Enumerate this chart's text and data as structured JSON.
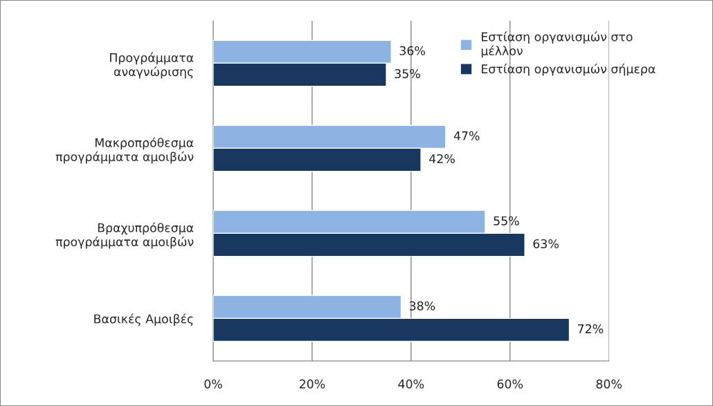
{
  "chart_data": {
    "type": "bar",
    "orientation": "horizontal",
    "categories": [
      "Προγράμματα\nαναγνώρισης",
      "Μακροπρόθεσμα\nπρογράμματα αμοιβών",
      "Βραχυπρόθεσμα\nπρογράμματα αμοιβών",
      "Βασικές Αμοιβές"
    ],
    "series": [
      {
        "name": "Εστίαση οργανισμών στο\nμέλλον",
        "color": "#8db3e2",
        "values": [
          36,
          47,
          55,
          38
        ],
        "value_labels": [
          "36%",
          "47%",
          "55%",
          "38%"
        ]
      },
      {
        "name": "Εστίαση οργανισμών σήμερα",
        "color": "#17375e",
        "values": [
          35,
          42,
          63,
          72
        ],
        "value_labels": [
          "35%",
          "42%",
          "63%",
          "72%"
        ]
      }
    ],
    "xlim": [
      0,
      80
    ],
    "xticks": [
      {
        "value": 0,
        "label": "0%"
      },
      {
        "value": 20,
        "label": "20%"
      },
      {
        "value": 40,
        "label": "40%"
      },
      {
        "value": 60,
        "label": "60%"
      },
      {
        "value": 80,
        "label": "80%"
      }
    ],
    "grid": "x",
    "legend": "top right"
  }
}
